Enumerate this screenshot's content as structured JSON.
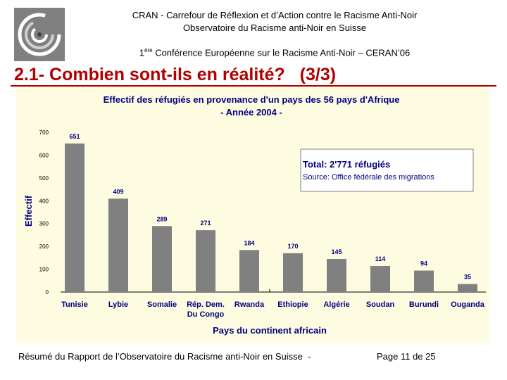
{
  "header": {
    "line1": "CRAN  -  Carrefour de Réflexion et d’Action contre le Racisme Anti-Noir",
    "line2": "Observatoire du Racisme anti-Noir en Suisse",
    "conf_ordinal": "1",
    "conf_sup": "ère",
    "conf_text": " Conférence Européenne sur le Racisme Anti-Noir – CERAN’06"
  },
  "slide_title": "2.1- Combien sont-ils en réalité?   (3/3)",
  "chart_data": {
    "type": "bar",
    "title": "Effectif des réfugiés en provenance d'un pays des 56 pays d'Afrique",
    "subtitle": "- Année 2004 -",
    "xlabel": "Pays du continent africain",
    "ylabel": "Effectif",
    "categories": [
      "Tunisie",
      "Lybie",
      "Somalie",
      "Rép. Dem. Du Congo",
      "Rwanda",
      "Ethiopie",
      "Algérie",
      "Soudan",
      "Burundi",
      "Ouganda"
    ],
    "category_lines": [
      [
        "Tunisie"
      ],
      [
        "Lybie"
      ],
      [
        "Somalie"
      ],
      [
        "Rép. Dem.",
        "Du Congo"
      ],
      [
        "Rwanda"
      ],
      [
        "Ethiopie"
      ],
      [
        "Algérie"
      ],
      [
        "Soudan"
      ],
      [
        "Burundi"
      ],
      [
        "Ouganda"
      ]
    ],
    "values": [
      651,
      409,
      289,
      271,
      184,
      170,
      145,
      114,
      94,
      35
    ],
    "ylim": [
      0,
      700
    ],
    "yticks": [
      0,
      100,
      200,
      300,
      400,
      500,
      600,
      700
    ],
    "grid": false,
    "legend": "none",
    "annotation": {
      "title": "Total: 2'771 réfugiés",
      "source": "Source: Office fédérale des migrations"
    },
    "colors": {
      "bar": "#808080",
      "panel": "#fdfbe0",
      "title_text": "#000080"
    }
  },
  "footer": {
    "left": "Résumé du Rapport de l’Observatoire du Racisme anti-Noir en Suisse  -",
    "right": "Page 11 de 25"
  },
  "colors": {
    "slide_title": "#b00000",
    "logo_bg": "#808080"
  }
}
